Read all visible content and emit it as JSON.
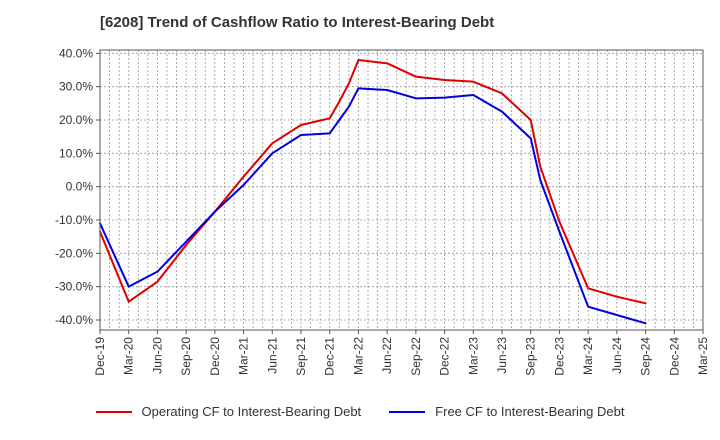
{
  "chart_data": {
    "type": "line",
    "title": "[6208]  Trend of Cashflow Ratio to Interest-Bearing Debt",
    "xlabel": "",
    "ylabel": "",
    "x_ticks": [
      "Dec-19",
      "Mar-20",
      "Jun-20",
      "Sep-20",
      "Dec-20",
      "Mar-21",
      "Jun-21",
      "Sep-21",
      "Dec-21",
      "Mar-22",
      "Jun-22",
      "Sep-22",
      "Dec-22",
      "Mar-23",
      "Jun-23",
      "Sep-23",
      "Dec-23",
      "Mar-24",
      "Jun-24",
      "Sep-24",
      "Dec-24",
      "Mar-25"
    ],
    "y_ticks": [
      "40.0%",
      "30.0%",
      "20.0%",
      "10.0%",
      "0.0%",
      "-10.0%",
      "-20.0%",
      "-30.0%",
      "-40.0%"
    ],
    "ylim": [
      -43,
      41
    ],
    "grid": true,
    "legend_position": "bottom",
    "series": [
      {
        "name": "Operating CF to Interest-Bearing Debt",
        "color": "#e00000",
        "x": [
          "Dec-19",
          "Mar-20",
          "Jun-20",
          "Sep-20",
          "Dec-20",
          "Mar-21",
          "Jun-21",
          "Sep-21",
          "Dec-21",
          "Jan-22",
          "Feb-22",
          "Mar-22",
          "Jun-22",
          "Sep-22",
          "Dec-22",
          "Mar-23",
          "Jun-23",
          "Sep-23",
          "Oct-23",
          "Dec-23",
          "Mar-24",
          "Jun-24",
          "Sep-24"
        ],
        "values": [
          -13.5,
          -34.5,
          -28.5,
          -17.5,
          -7.5,
          3.0,
          13.0,
          18.5,
          20.5,
          25.5,
          31.0,
          38.0,
          37.0,
          33.0,
          32.0,
          31.5,
          28.0,
          20.0,
          6.0,
          -10.5,
          -30.5,
          -33.0,
          -35.0
        ]
      },
      {
        "name": "Free CF to Interest-Bearing Debt",
        "color": "#0000e0",
        "x": [
          "Dec-19",
          "Mar-20",
          "Jun-20",
          "Sep-20",
          "Dec-20",
          "Mar-21",
          "Jun-21",
          "Sep-21",
          "Dec-21",
          "Jan-22",
          "Feb-22",
          "Mar-22",
          "Jun-22",
          "Sep-22",
          "Dec-22",
          "Mar-23",
          "Jun-23",
          "Sep-23",
          "Oct-23",
          "Dec-23",
          "Mar-24",
          "Jun-24",
          "Sep-24"
        ],
        "values": [
          -11.0,
          -30.0,
          -25.5,
          -16.5,
          -7.5,
          0.5,
          10.0,
          15.5,
          16.0,
          20.0,
          24.0,
          29.5,
          29.0,
          26.5,
          26.7,
          27.5,
          22.5,
          14.5,
          2.0,
          -13.5,
          -36.0,
          -38.5,
          -41.0
        ]
      }
    ]
  }
}
